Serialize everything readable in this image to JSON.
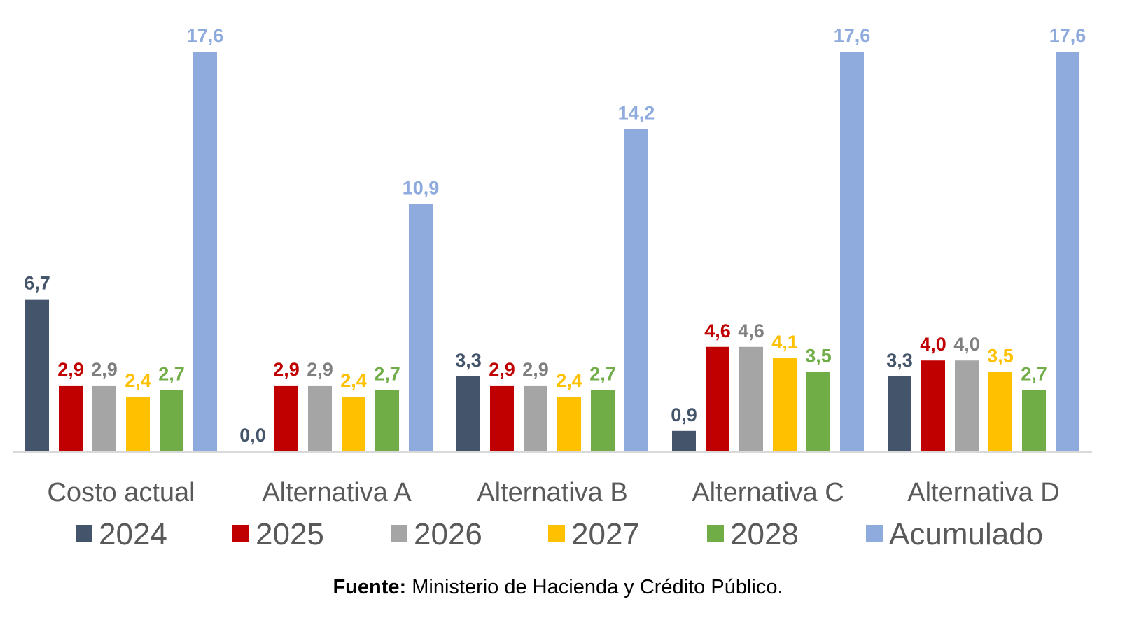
{
  "chart_data": {
    "type": "bar",
    "categories": [
      "Costo actual",
      "Alternativa A",
      "Alternativa B",
      "Alternativa C",
      "Alternativa D"
    ],
    "series": [
      {
        "name": "2024",
        "color": "#44546a",
        "label_color": "#44546a",
        "values": [
          6.7,
          0.0,
          3.3,
          0.9,
          3.3
        ]
      },
      {
        "name": "2025",
        "color": "#c00000",
        "label_color": "#c00000",
        "values": [
          2.9,
          2.9,
          2.9,
          4.6,
          4.0
        ]
      },
      {
        "name": "2026",
        "color": "#a5a5a5",
        "label_color": "#7f7f7f",
        "values": [
          2.9,
          2.9,
          2.9,
          4.6,
          4.0
        ]
      },
      {
        "name": "2027",
        "color": "#ffc000",
        "label_color": "#ffc000",
        "values": [
          2.4,
          2.4,
          2.4,
          4.1,
          3.5
        ]
      },
      {
        "name": "2028",
        "color": "#70ad47",
        "label_color": "#70ad47",
        "values": [
          2.7,
          2.7,
          2.7,
          3.5,
          2.7
        ]
      },
      {
        "name": "Acumulado",
        "color": "#8faadc",
        "label_color": "#8faadc",
        "values": [
          17.6,
          10.9,
          14.2,
          17.6,
          17.6
        ]
      }
    ],
    "ylim": [
      0,
      17.6
    ],
    "legend_position": "bottom",
    "grid": false,
    "decimal_separator": ",",
    "source_label": "Fuente:",
    "source_text": " Ministerio de Hacienda y Crédito Público."
  }
}
